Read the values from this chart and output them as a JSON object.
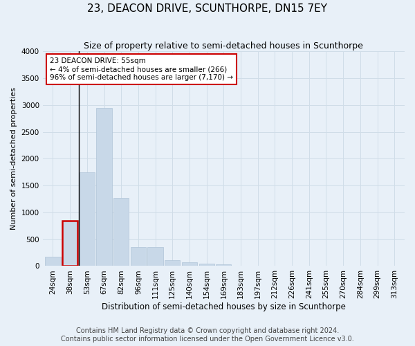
{
  "title": "23, DEACON DRIVE, SCUNTHORPE, DN15 7EY",
  "subtitle": "Size of property relative to semi-detached houses in Scunthorpe",
  "xlabel": "Distribution of semi-detached houses by size in Scunthorpe",
  "ylabel": "Number of semi-detached properties",
  "footer_line1": "Contains HM Land Registry data © Crown copyright and database right 2024.",
  "footer_line2": "Contains public sector information licensed under the Open Government Licence v3.0.",
  "annotation_title": "23 DEACON DRIVE: 55sqm",
  "annotation_line1": "← 4% of semi-detached houses are smaller (266)",
  "annotation_line2": "96% of semi-detached houses are larger (7,170) →",
  "bin_labels": [
    "24sqm",
    "38sqm",
    "53sqm",
    "67sqm",
    "82sqm",
    "96sqm",
    "111sqm",
    "125sqm",
    "140sqm",
    "154sqm",
    "169sqm",
    "183sqm",
    "197sqm",
    "212sqm",
    "226sqm",
    "241sqm",
    "255sqm",
    "270sqm",
    "284sqm",
    "299sqm",
    "313sqm"
  ],
  "bar_heights": [
    175,
    850,
    1750,
    2950,
    1275,
    350,
    350,
    115,
    65,
    50,
    30,
    10,
    5,
    3,
    2,
    2,
    1,
    1,
    1,
    1,
    1
  ],
  "bar_color": "#c8d8e8",
  "bar_edge_color": "#b0c4d8",
  "highlight_bar_index": 1,
  "highlight_edge_color": "#cc0000",
  "vline_color": "#000000",
  "annotation_box_edge_color": "#cc0000",
  "annotation_box_face_color": "#ffffff",
  "ylim": [
    0,
    4000
  ],
  "yticks": [
    0,
    500,
    1000,
    1500,
    2000,
    2500,
    3000,
    3500,
    4000
  ],
  "grid_color": "#d0dde8",
  "background_color": "#e8f0f8",
  "title_fontsize": 11,
  "subtitle_fontsize": 9,
  "xlabel_fontsize": 8.5,
  "ylabel_fontsize": 8,
  "tick_fontsize": 7.5,
  "annotation_fontsize": 7.5,
  "footer_fontsize": 7
}
